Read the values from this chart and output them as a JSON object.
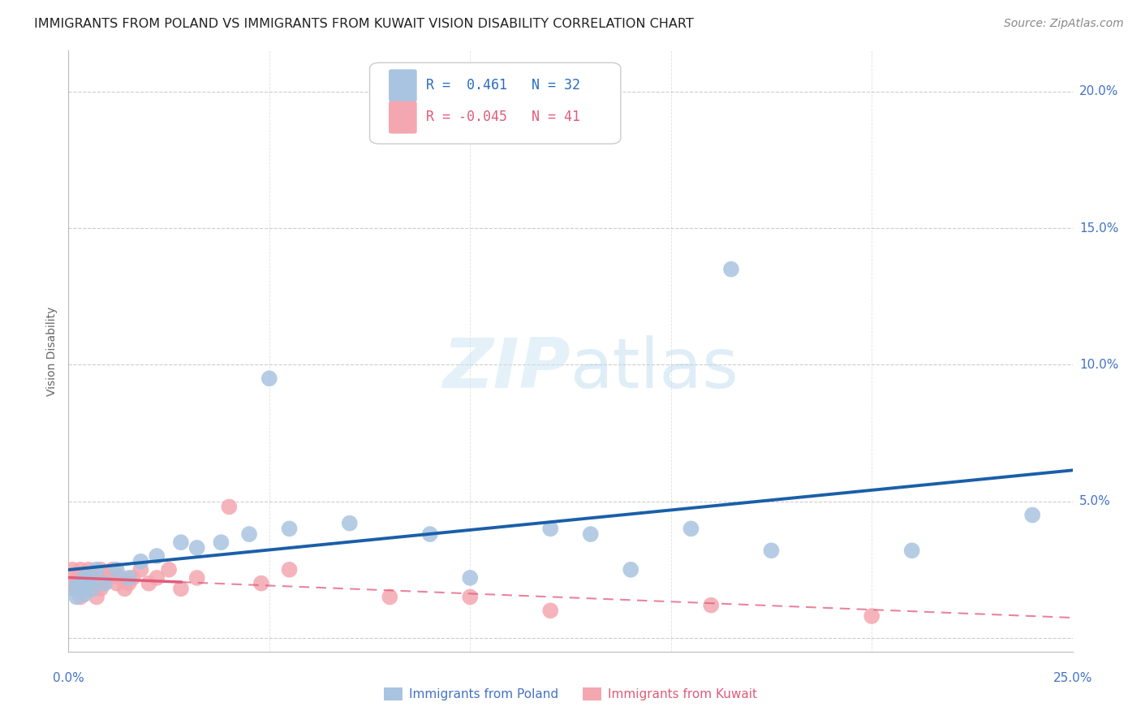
{
  "title": "IMMIGRANTS FROM POLAND VS IMMIGRANTS FROM KUWAIT VISION DISABILITY CORRELATION CHART",
  "source": "Source: ZipAtlas.com",
  "ylabel": "Vision Disability",
  "xlim": [
    0.0,
    0.25
  ],
  "ylim": [
    -0.005,
    0.215
  ],
  "xticks": [
    0.0,
    0.05,
    0.1,
    0.15,
    0.2,
    0.25
  ],
  "yticks": [
    0.0,
    0.05,
    0.1,
    0.15,
    0.2
  ],
  "poland_color": "#a8c4e0",
  "kuwait_color": "#f4a7b0",
  "poland_line_color": "#1a5fa8",
  "kuwait_line_color": "#e05c7a",
  "poland_R": 0.461,
  "poland_N": 32,
  "kuwait_R": -0.045,
  "kuwait_N": 41,
  "background_color": "#ffffff",
  "grid_color": "#cccccc",
  "poland_x": [
    0.001,
    0.002,
    0.003,
    0.003,
    0.004,
    0.004,
    0.005,
    0.005,
    0.006,
    0.007,
    0.009,
    0.012,
    0.015,
    0.018,
    0.022,
    0.028,
    0.032,
    0.038,
    0.045,
    0.05,
    0.055,
    0.07,
    0.09,
    0.1,
    0.12,
    0.13,
    0.14,
    0.155,
    0.165,
    0.175,
    0.21,
    0.24
  ],
  "poland_y": [
    0.018,
    0.015,
    0.02,
    0.018,
    0.022,
    0.016,
    0.02,
    0.022,
    0.018,
    0.025,
    0.02,
    0.025,
    0.022,
    0.028,
    0.03,
    0.035,
    0.033,
    0.035,
    0.038,
    0.095,
    0.04,
    0.042,
    0.038,
    0.022,
    0.04,
    0.038,
    0.025,
    0.04,
    0.135,
    0.032,
    0.032,
    0.045
  ],
  "kuwait_x": [
    0.001,
    0.001,
    0.002,
    0.002,
    0.003,
    0.003,
    0.003,
    0.004,
    0.004,
    0.004,
    0.005,
    0.005,
    0.005,
    0.006,
    0.006,
    0.007,
    0.007,
    0.008,
    0.008,
    0.009,
    0.01,
    0.011,
    0.012,
    0.013,
    0.014,
    0.015,
    0.016,
    0.018,
    0.02,
    0.022,
    0.025,
    0.028,
    0.032,
    0.04,
    0.048,
    0.055,
    0.08,
    0.1,
    0.12,
    0.16,
    0.2
  ],
  "kuwait_y": [
    0.02,
    0.025,
    0.018,
    0.022,
    0.02,
    0.025,
    0.015,
    0.02,
    0.018,
    0.022,
    0.02,
    0.025,
    0.018,
    0.022,
    0.018,
    0.02,
    0.015,
    0.025,
    0.018,
    0.02,
    0.022,
    0.025,
    0.02,
    0.022,
    0.018,
    0.02,
    0.022,
    0.025,
    0.02,
    0.022,
    0.025,
    0.018,
    0.022,
    0.048,
    0.02,
    0.025,
    0.015,
    0.015,
    0.01,
    0.012,
    0.008
  ],
  "title_fontsize": 11.5,
  "axis_label_fontsize": 10,
  "tick_fontsize": 11,
  "legend_fontsize": 12,
  "source_fontsize": 10
}
